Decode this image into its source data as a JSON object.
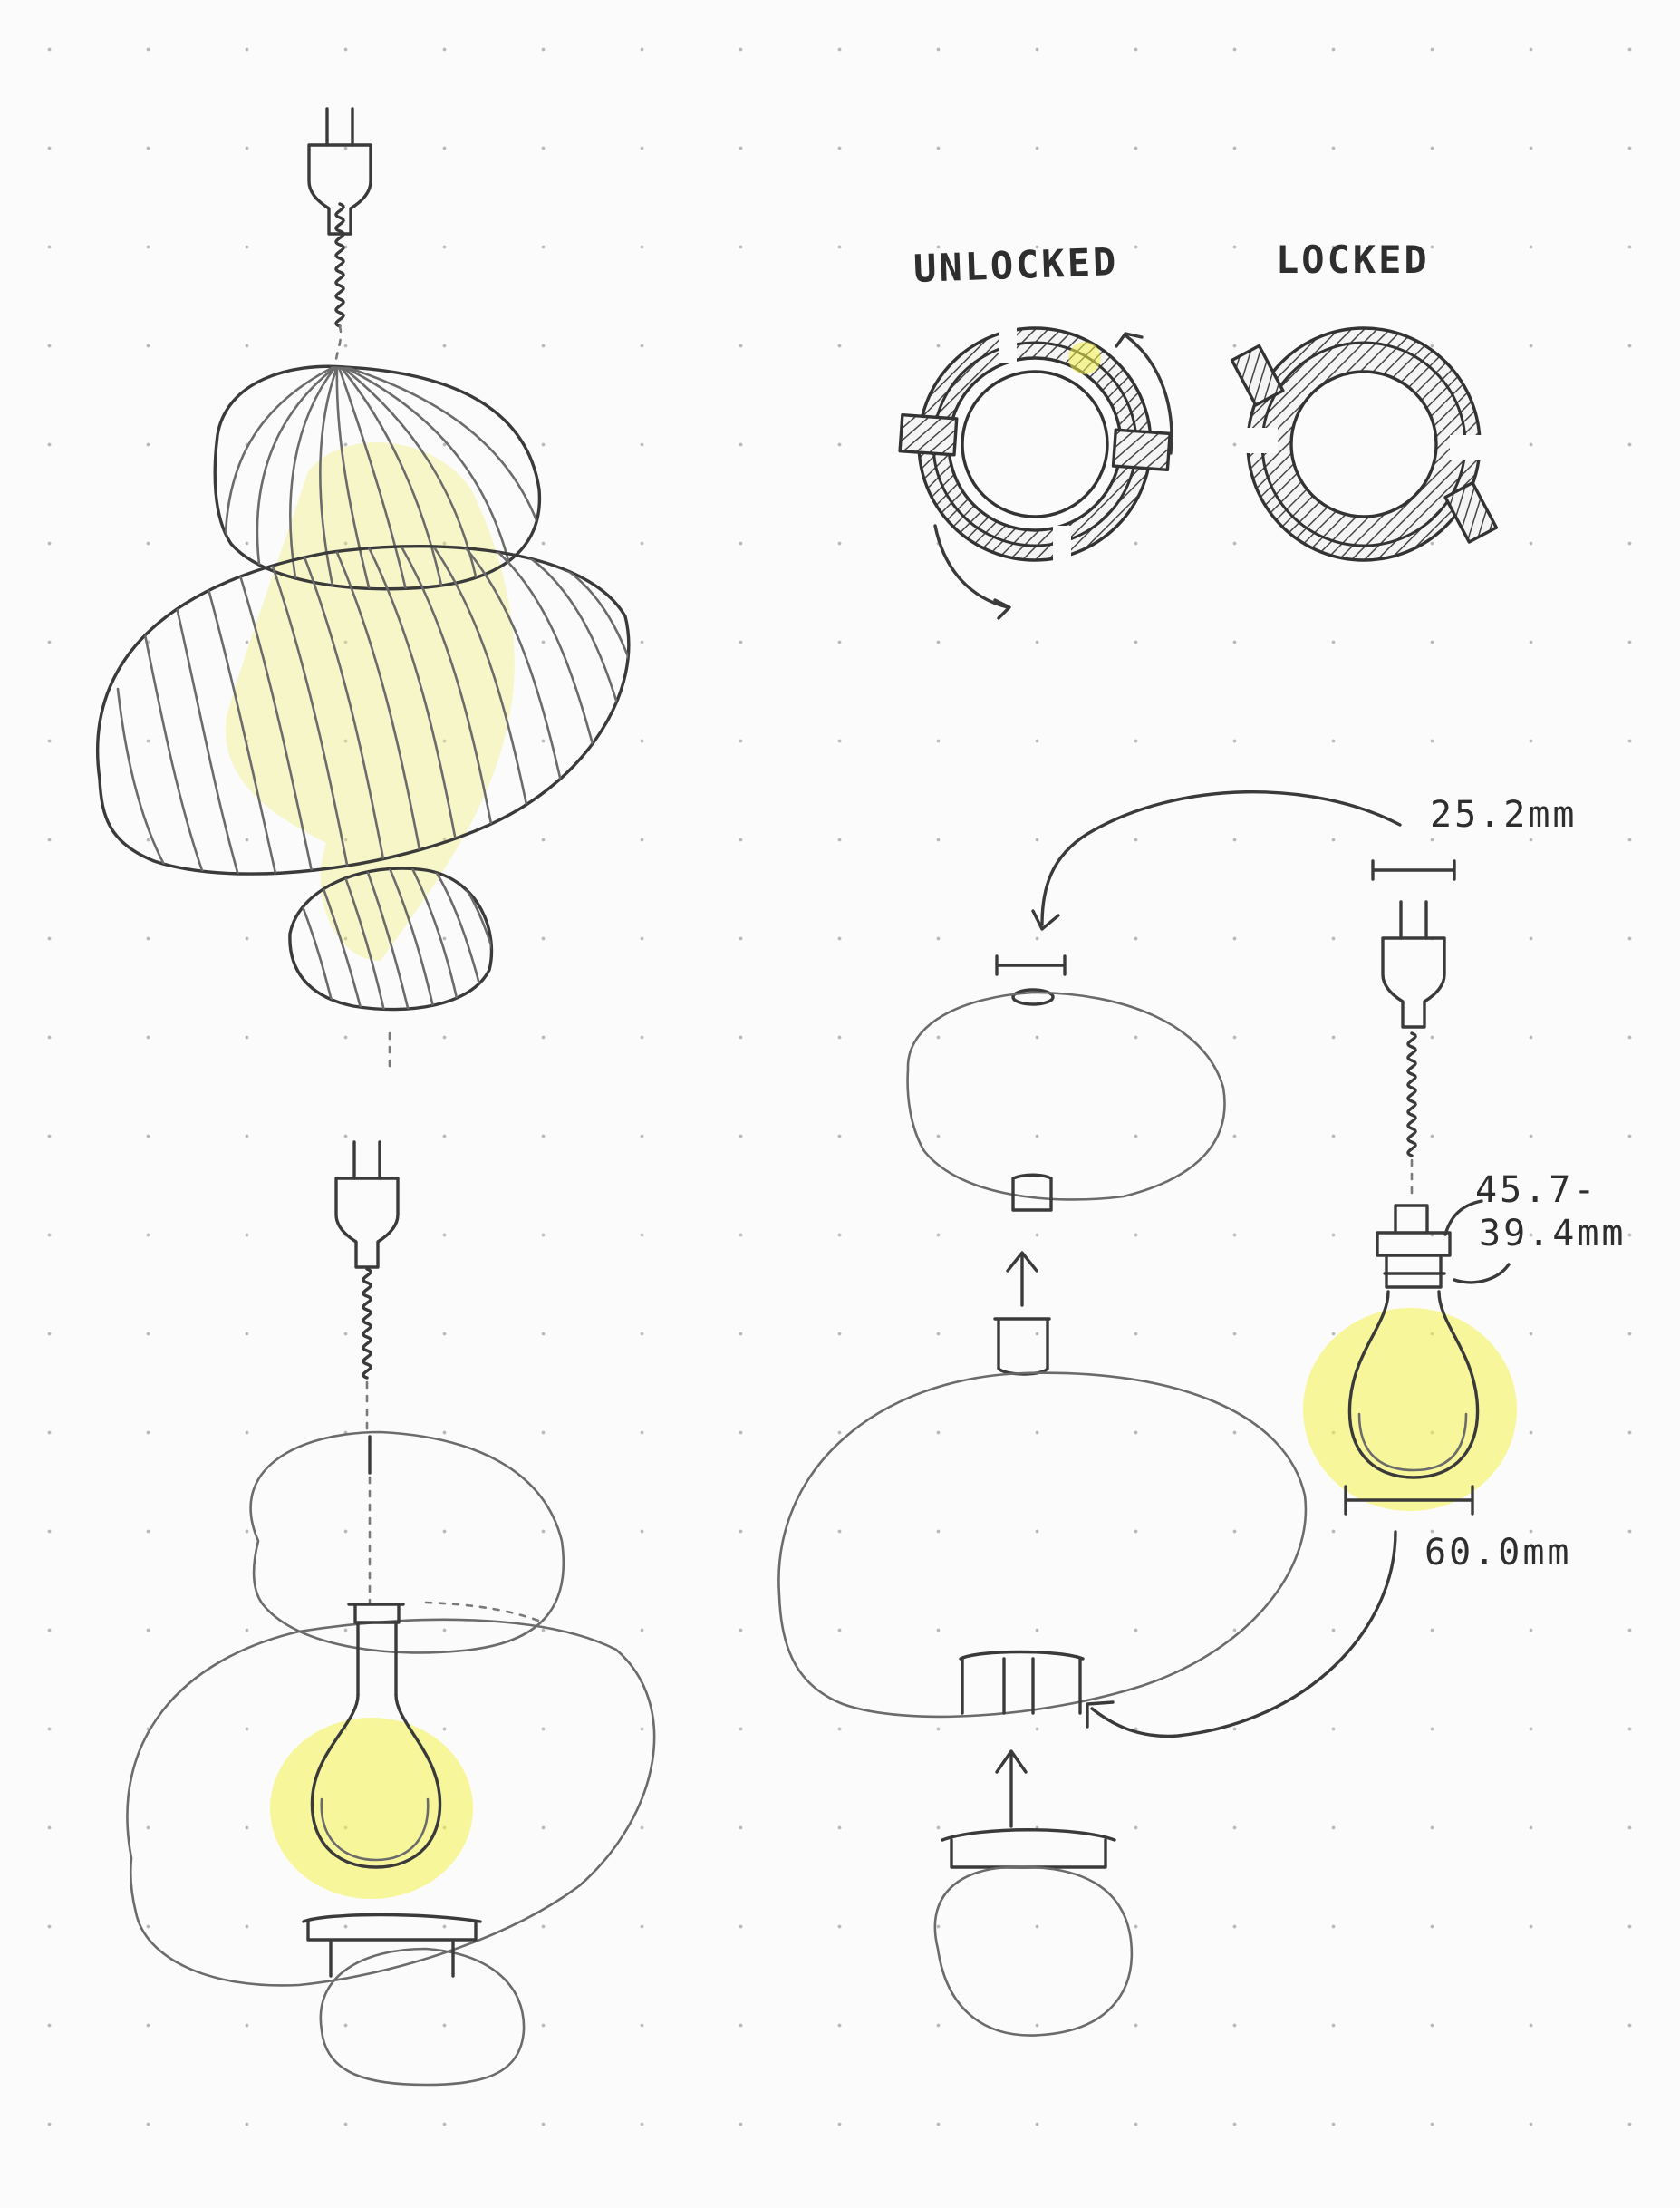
{
  "labels": {
    "unlocked": "UNLOCKED",
    "locked": "LOCKED",
    "dim_cord_width": "25.2mm",
    "dim_socket_range_top": "45.7-",
    "dim_socket_range_bottom": "39.4mm",
    "dim_bulb_width": "60.0mm"
  },
  "colors": {
    "pencil": "#3a3a3a",
    "highlight": "#f5f24a",
    "paper": "#fbfbfb",
    "grid_dot": "#b9b9b9"
  },
  "icons": [
    "plug-icon",
    "bulb-icon",
    "rotate-arrow-icon"
  ]
}
